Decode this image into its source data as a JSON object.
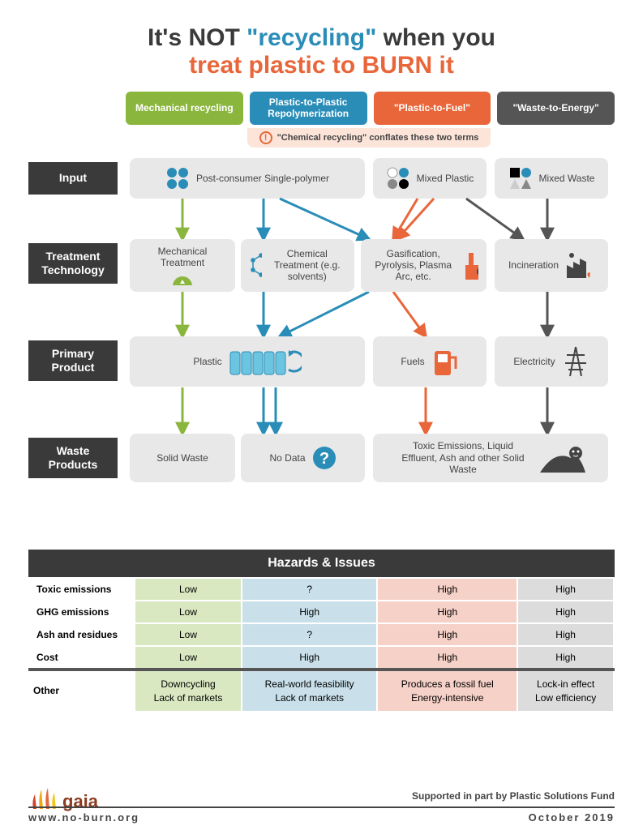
{
  "title": {
    "l1a": "It's NOT ",
    "l1b": "\"recycling\"",
    "l1c": " when you",
    "l2": "treat plastic to BURN it"
  },
  "colors": {
    "green": "#8bb63e",
    "blue": "#2a8db8",
    "orange": "#e8663a",
    "grey": "#555",
    "boxbg": "#e8e8e8",
    "lightgreen": "#d9e8c1",
    "lightblue": "#c9e0ea",
    "lightorange": "#f6d1c7",
    "lightgrey": "#dcdcdc"
  },
  "columns": [
    {
      "label": "Mechanical recycling",
      "bg": "#8bb63e"
    },
    {
      "label": "Plastic-to-Plastic Repolymerization",
      "bg": "#2a8db8"
    },
    {
      "label": "\"Plastic-to-Fuel\"",
      "bg": "#e8663a"
    },
    {
      "label": "\"Waste-to-Energy\"",
      "bg": "#555"
    }
  ],
  "conflate": "\"Chemical recycling\" conflates these two terms",
  "rowLabels": [
    "Input",
    "Treatment Technology",
    "Primary Product",
    "Waste Products"
  ],
  "inputs": {
    "single": "Post-consumer Single-polymer",
    "mixedP": "Mixed Plastic",
    "mixedW": "Mixed Waste"
  },
  "treatments": {
    "mech": "Mechanical Treatment",
    "chem": "Chemical Treatment (e.g. solvents)",
    "gas": "Gasification, Pyrolysis, Plasma Arc, etc.",
    "inc": "Incineration"
  },
  "products": {
    "plastic": "Plastic",
    "fuels": "Fuels",
    "elec": "Electricity"
  },
  "waste": {
    "solid": "Solid Waste",
    "nodata": "No Data",
    "toxic": "Toxic Emissions, Liquid Effluent, Ash and other Solid Waste"
  },
  "hazards": {
    "title": "Hazards & Issues",
    "rows": [
      {
        "label": "Toxic emissions",
        "cells": [
          "Low",
          "?",
          "High",
          "High"
        ]
      },
      {
        "label": "GHG emissions",
        "cells": [
          "Low",
          "High",
          "High",
          "High"
        ]
      },
      {
        "label": "Ash and residues",
        "cells": [
          "Low",
          "?",
          "High",
          "High"
        ]
      },
      {
        "label": "Cost",
        "cells": [
          "Low",
          "High",
          "High",
          "High"
        ]
      }
    ],
    "other": {
      "label": "Other",
      "cells": [
        "Downcycling\nLack of markets",
        "Real-world feasibility\nLack of markets",
        "Produces a fossil fuel\nEnergy-intensive",
        "Lock-in effect\nLow efficiency"
      ]
    }
  },
  "footer": {
    "support": "Supported in part by Plastic Solutions Fund",
    "url": "www.no-burn.org",
    "date": "October 2019",
    "logo": "gaia"
  }
}
